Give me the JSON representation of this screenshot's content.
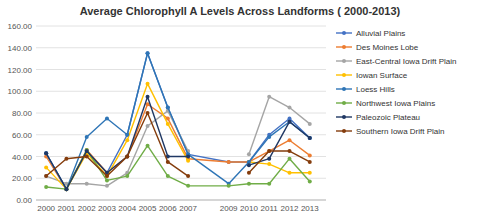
{
  "chart_data": {
    "type": "line",
    "title": "Average Chlorophyll A Levels Across Landforms ( 2000-2013)",
    "x": [
      2000,
      2001,
      2002,
      2003,
      2004,
      2005,
      2006,
      2007,
      2009,
      2010,
      2011,
      2012,
      2013
    ],
    "series": [
      {
        "name": "Alluvial Plains",
        "color": "#4472C4",
        "values": [
          43,
          10,
          45,
          25,
          60,
          135,
          85,
          42,
          35,
          35,
          60,
          75,
          57
        ]
      },
      {
        "name": "Des Moines Lobe",
        "color": "#ED7D31",
        "values": [
          40,
          10,
          46,
          25,
          40,
          88,
          75,
          38,
          35,
          35,
          45,
          55,
          41
        ]
      },
      {
        "name": "East-Central Iowa Drift Plain",
        "color": "#A5A5A5",
        "values": [
          22,
          15,
          15,
          13,
          25,
          68,
          82,
          45,
          null,
          42,
          95,
          85,
          70
        ]
      },
      {
        "name": "Iowan Surface",
        "color": "#FFC000",
        "values": [
          30,
          10,
          43,
          22,
          55,
          107,
          70,
          36,
          null,
          35,
          33,
          25,
          25
        ]
      },
      {
        "name": "Loess Hills",
        "color": "#2E75B6",
        "values": [
          43,
          10,
          58,
          75,
          60,
          135,
          85,
          42,
          15,
          35,
          58,
          72,
          57
        ]
      },
      {
        "name": "Northwest Iowa Plains",
        "color": "#70AD47",
        "values": [
          12,
          10,
          46,
          18,
          22,
          50,
          22,
          13,
          13,
          15,
          15,
          38,
          17
        ]
      },
      {
        "name": "Paleozoic Plateau",
        "color": "#203864",
        "values": [
          43,
          10,
          45,
          25,
          40,
          95,
          40,
          40,
          null,
          32,
          38,
          72,
          57
        ]
      },
      {
        "name": "Southern Iowa Drift Plain",
        "color": "#843C0C",
        "values": [
          22,
          38,
          40,
          22,
          40,
          80,
          35,
          22,
          null,
          25,
          45,
          45,
          35
        ]
      }
    ],
    "xlim": [
      1999.5,
      2013.8
    ],
    "xticks": [
      2000,
      2001,
      2002,
      2003,
      2004,
      2005,
      2006,
      2007,
      2009,
      2010,
      2011,
      2012,
      2013
    ],
    "ylim": [
      0,
      160
    ],
    "yticks": [
      {
        "value": 0,
        "label": "0.00"
      },
      {
        "value": 20,
        "label": "20.00"
      },
      {
        "value": 40,
        "label": "40.00"
      },
      {
        "value": 60,
        "label": "60.00"
      },
      {
        "value": 80,
        "label": "80.00"
      },
      {
        "value": 100,
        "label": "100.00"
      },
      {
        "value": 120,
        "label": "120.00"
      },
      {
        "value": 140,
        "label": "140.00"
      },
      {
        "value": 160,
        "label": "160.00"
      }
    ],
    "grid": true,
    "legend": "upper right",
    "marker": "circle"
  }
}
